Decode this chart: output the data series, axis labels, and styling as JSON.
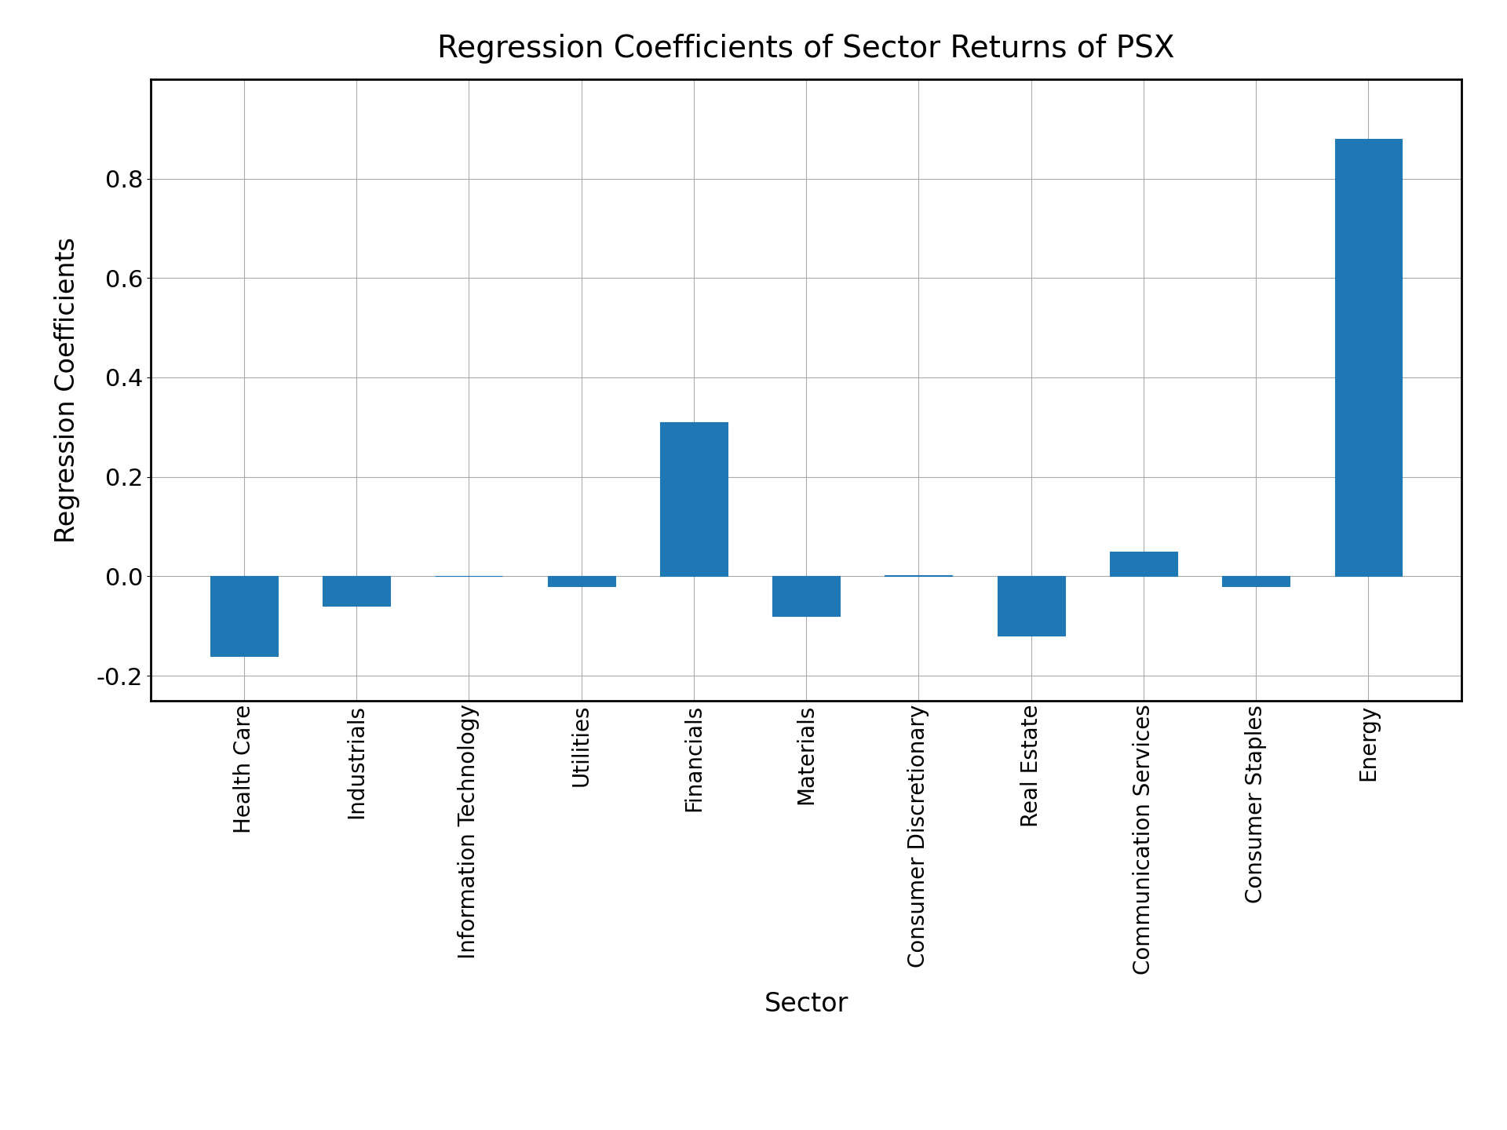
{
  "categories": [
    "Health Care",
    "Industrials",
    "Information Technology",
    "Utilities",
    "Financials",
    "Materials",
    "Consumer Discretionary",
    "Real Estate",
    "Communication Services",
    "Consumer Staples",
    "Energy"
  ],
  "values": [
    -0.16,
    -0.06,
    0.001,
    -0.02,
    0.31,
    -0.08,
    0.002,
    -0.12,
    0.05,
    -0.02,
    0.88
  ],
  "bar_color": "#1f77b4",
  "bar_edgecolor": "#1f77b4",
  "title": "Regression Coefficients of Sector Returns of PSX",
  "xlabel": "Sector",
  "ylabel": "Regression Coefficients",
  "ylim": [
    -0.25,
    1.0
  ],
  "yticks": [
    -0.2,
    0.0,
    0.2,
    0.4,
    0.6,
    0.8
  ],
  "title_fontsize": 28,
  "label_fontsize": 24,
  "tick_fontsize": 22,
  "xtick_fontsize": 20,
  "grid": true,
  "background_color": "#ffffff",
  "spine_linewidth": 2.0
}
